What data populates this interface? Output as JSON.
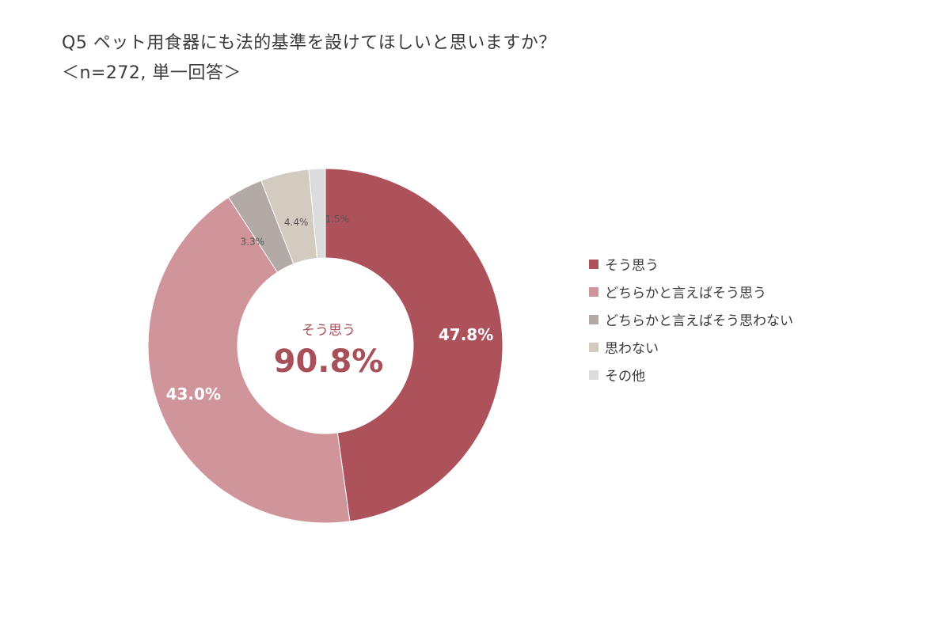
{
  "title": {
    "line1": "Q5 ペット用食器にも法的基準を設けてほしいと思いますか？",
    "line2": "＜n=272, 単一回答＞"
  },
  "center": {
    "label": "そう思う",
    "value": "90.8%",
    "color": "#a8505a"
  },
  "chart_data": {
    "type": "pie",
    "donut": true,
    "start_angle_deg": 0,
    "direction": "clockwise",
    "legend_position": "right",
    "categories": [
      "そう思う",
      "どちらかと言えばそう思う",
      "どちらかと言えばそう思わない",
      "思わない",
      "その他"
    ],
    "values": [
      47.8,
      43.0,
      3.3,
      4.4,
      1.5
    ],
    "labels": [
      "47.8%",
      "43.0%",
      "3.3%",
      "4.4%",
      "1.5%"
    ],
    "colors": [
      "#ad525b",
      "#cf959a",
      "#b3aaa6",
      "#d4cbc0",
      "#dcdcdc"
    ],
    "label_colors": [
      "#ffffff",
      "#ffffff",
      "#555555",
      "#555555",
      "#555555"
    ]
  }
}
